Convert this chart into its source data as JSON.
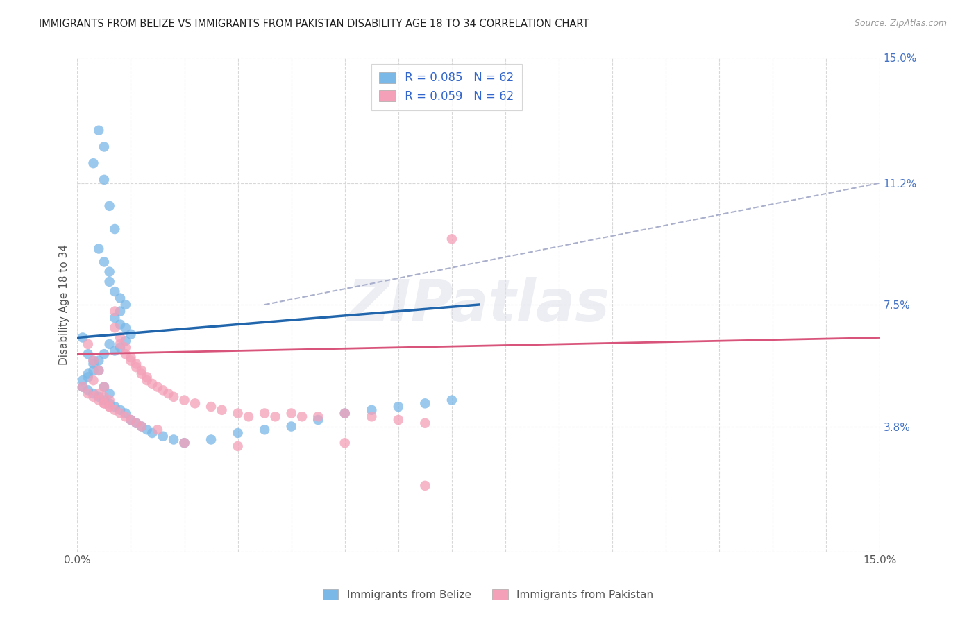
{
  "title": "IMMIGRANTS FROM BELIZE VS IMMIGRANTS FROM PAKISTAN DISABILITY AGE 18 TO 34 CORRELATION CHART",
  "source": "Source: ZipAtlas.com",
  "ylabel": "Disability Age 18 to 34",
  "xlim": [
    0.0,
    0.15
  ],
  "ylim": [
    0.0,
    0.15
  ],
  "ytick_positions": [
    0.0,
    0.038,
    0.075,
    0.112,
    0.15
  ],
  "ytick_labels": [
    "",
    "3.8%",
    "7.5%",
    "11.2%",
    "15.0%"
  ],
  "belize_color": "#7ab8e8",
  "pakistan_color": "#f4a0b8",
  "belize_line_color": "#2166ac",
  "pakistan_line_color": "#d9547a",
  "belize_dashed_color": "#aab0cc",
  "legend_belize_R": "R = 0.085",
  "legend_belize_N": "N = 62",
  "legend_pakistan_R": "R = 0.059",
  "legend_pakistan_N": "N = 62",
  "watermark": "ZIPatlas",
  "background_color": "#ffffff",
  "grid_color": "#d8d8d8",
  "belize_x": [
    0.004,
    0.005,
    0.003,
    0.005,
    0.006,
    0.007,
    0.004,
    0.005,
    0.006,
    0.006,
    0.007,
    0.008,
    0.009,
    0.008,
    0.007,
    0.008,
    0.009,
    0.01,
    0.009,
    0.008,
    0.007,
    0.006,
    0.005,
    0.004,
    0.003,
    0.003,
    0.002,
    0.002,
    0.001,
    0.001,
    0.002,
    0.003,
    0.004,
    0.005,
    0.006,
    0.007,
    0.008,
    0.009,
    0.01,
    0.011,
    0.012,
    0.013,
    0.014,
    0.016,
    0.018,
    0.02,
    0.025,
    0.03,
    0.035,
    0.04,
    0.045,
    0.05,
    0.055,
    0.06,
    0.065,
    0.07,
    0.001,
    0.002,
    0.003,
    0.004,
    0.005,
    0.006
  ],
  "belize_y": [
    0.128,
    0.123,
    0.118,
    0.113,
    0.105,
    0.098,
    0.092,
    0.088,
    0.085,
    0.082,
    0.079,
    0.077,
    0.075,
    0.073,
    0.071,
    0.069,
    0.068,
    0.066,
    0.064,
    0.062,
    0.061,
    0.063,
    0.06,
    0.058,
    0.057,
    0.055,
    0.054,
    0.053,
    0.052,
    0.05,
    0.049,
    0.048,
    0.047,
    0.046,
    0.045,
    0.044,
    0.043,
    0.042,
    0.04,
    0.039,
    0.038,
    0.037,
    0.036,
    0.035,
    0.034,
    0.033,
    0.034,
    0.036,
    0.037,
    0.038,
    0.04,
    0.042,
    0.043,
    0.044,
    0.045,
    0.046,
    0.065,
    0.06,
    0.058,
    0.055,
    0.05,
    0.048
  ],
  "pakistan_x": [
    0.002,
    0.003,
    0.004,
    0.003,
    0.005,
    0.004,
    0.005,
    0.006,
    0.005,
    0.006,
    0.007,
    0.007,
    0.008,
    0.008,
    0.009,
    0.009,
    0.01,
    0.01,
    0.011,
    0.011,
    0.012,
    0.012,
    0.013,
    0.013,
    0.014,
    0.015,
    0.016,
    0.017,
    0.018,
    0.02,
    0.022,
    0.025,
    0.027,
    0.03,
    0.032,
    0.035,
    0.037,
    0.04,
    0.042,
    0.045,
    0.05,
    0.055,
    0.06,
    0.065,
    0.07,
    0.001,
    0.002,
    0.003,
    0.004,
    0.005,
    0.006,
    0.007,
    0.008,
    0.009,
    0.01,
    0.011,
    0.012,
    0.015,
    0.02,
    0.03,
    0.05,
    0.065
  ],
  "pakistan_y": [
    0.063,
    0.058,
    0.055,
    0.052,
    0.05,
    0.048,
    0.047,
    0.046,
    0.045,
    0.044,
    0.073,
    0.068,
    0.065,
    0.063,
    0.062,
    0.06,
    0.059,
    0.058,
    0.057,
    0.056,
    0.055,
    0.054,
    0.053,
    0.052,
    0.051,
    0.05,
    0.049,
    0.048,
    0.047,
    0.046,
    0.045,
    0.044,
    0.043,
    0.042,
    0.041,
    0.042,
    0.041,
    0.042,
    0.041,
    0.041,
    0.042,
    0.041,
    0.04,
    0.039,
    0.095,
    0.05,
    0.048,
    0.047,
    0.046,
    0.045,
    0.044,
    0.043,
    0.042,
    0.041,
    0.04,
    0.039,
    0.038,
    0.037,
    0.033,
    0.032,
    0.033,
    0.02
  ],
  "belize_line_x": [
    0.0,
    0.075
  ],
  "belize_line_y": [
    0.065,
    0.075
  ],
  "pakistan_line_x": [
    0.0,
    0.15
  ],
  "pakistan_line_y": [
    0.06,
    0.065
  ],
  "dashed_line_x": [
    0.035,
    0.15
  ],
  "dashed_line_y": [
    0.075,
    0.112
  ]
}
